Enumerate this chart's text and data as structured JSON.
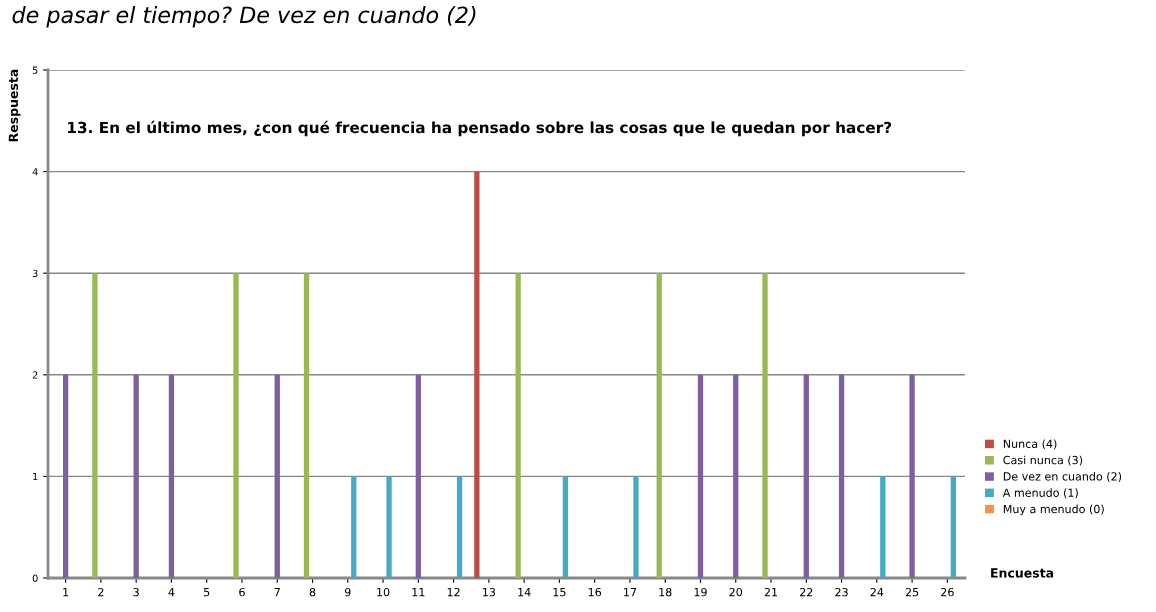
{
  "chart_data": {
    "type": "bar",
    "title": "13. En el último mes, ¿con qué frecuencia ha pensado sobre las cosas que le quedan por hacer?",
    "xlabel": "Encuesta",
    "ylabel": "Respuesta",
    "annotations": [
      "de pasar el tiempo? De vez en cuando (2)"
    ],
    "categories": [
      "1",
      "2",
      "3",
      "4",
      "5",
      "6",
      "7",
      "8",
      "9",
      "10",
      "11",
      "12",
      "13",
      "14",
      "15",
      "16",
      "17",
      "18",
      "19",
      "20",
      "21",
      "22",
      "23",
      "24",
      "25",
      "26"
    ],
    "series": [
      {
        "name": "Nunca (4)",
        "color": "#be4b48",
        "values": [
          null,
          null,
          null,
          null,
          null,
          null,
          null,
          null,
          null,
          null,
          null,
          null,
          4,
          null,
          null,
          null,
          null,
          null,
          null,
          null,
          null,
          null,
          null,
          null,
          null,
          null
        ]
      },
      {
        "name": "Casi nunca (3)",
        "color": "#98b954",
        "values": [
          null,
          3,
          null,
          null,
          null,
          3,
          null,
          3,
          null,
          null,
          null,
          null,
          null,
          3,
          null,
          null,
          null,
          3,
          null,
          null,
          3,
          null,
          null,
          null,
          null,
          null
        ]
      },
      {
        "name": "De vez en cuando (2)",
        "color": "#7d60a0",
        "values": [
          2,
          null,
          2,
          2,
          null,
          null,
          2,
          null,
          null,
          null,
          2,
          null,
          null,
          null,
          null,
          null,
          null,
          null,
          2,
          2,
          null,
          2,
          2,
          null,
          2,
          null
        ]
      },
      {
        "name": "A menudo (1)",
        "color": "#46aac5",
        "values": [
          null,
          null,
          null,
          null,
          null,
          null,
          null,
          null,
          1,
          1,
          null,
          1,
          null,
          null,
          1,
          null,
          1,
          null,
          null,
          null,
          null,
          null,
          null,
          1,
          null,
          1
        ]
      },
      {
        "name": "Muy a menudo (0)",
        "color": "#f69545",
        "values": [
          null,
          null,
          null,
          null,
          null,
          null,
          null,
          null,
          null,
          null,
          null,
          null,
          null,
          null,
          null,
          null,
          null,
          null,
          null,
          null,
          null,
          null,
          null,
          null,
          null,
          null
        ]
      }
    ],
    "ylim": [
      0,
      5
    ],
    "yticks": [
      0,
      1,
      2,
      3,
      4,
      5
    ],
    "grid": "y",
    "legend": "right"
  }
}
